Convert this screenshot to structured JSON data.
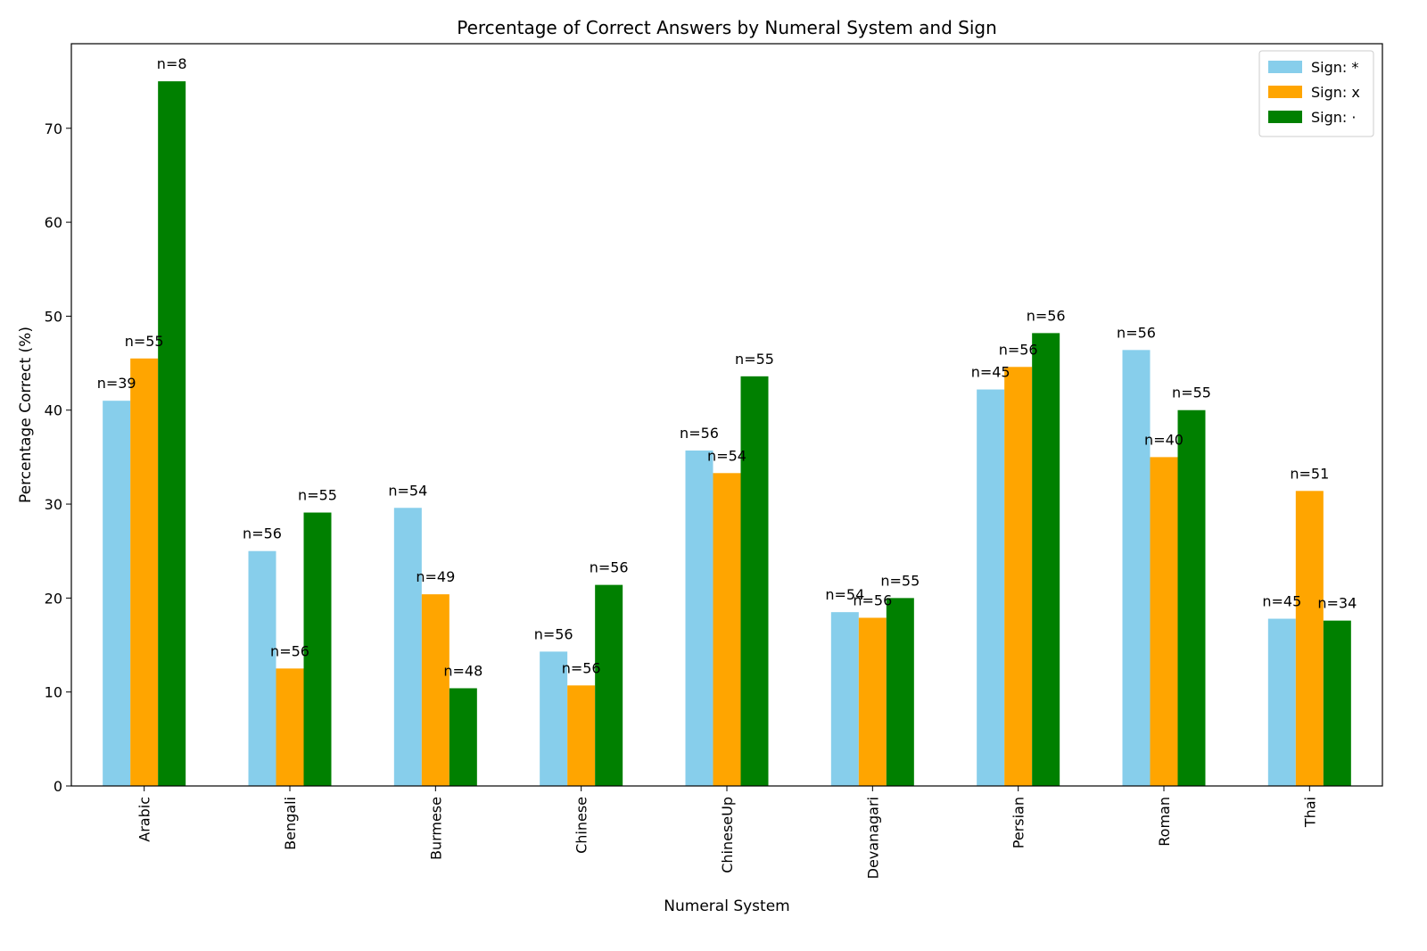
{
  "chart_data": {
    "type": "bar",
    "title": "Percentage of Correct Answers by Numeral System and Sign",
    "xlabel": "Numeral System",
    "ylabel": "Percentage Correct (%)",
    "ylim": [
      0,
      79
    ],
    "yticks": [
      0,
      10,
      20,
      30,
      40,
      50,
      60,
      70
    ],
    "grid": false,
    "legend_position": "top-right",
    "categories": [
      "Arabic",
      "Bengali",
      "Burmese",
      "Chinese",
      "ChineseUp",
      "Devanagari",
      "Persian",
      "Roman",
      "Thai"
    ],
    "series": [
      {
        "name": "Sign: *",
        "color": "#87ceeb",
        "values": [
          41.0,
          25.0,
          29.6,
          14.3,
          35.7,
          18.5,
          42.2,
          46.4,
          17.8
        ],
        "labels": [
          "n=39",
          "n=56",
          "n=54",
          "n=56",
          "n=56",
          "n=54",
          "n=45",
          "n=56",
          "n=45"
        ]
      },
      {
        "name": "Sign: x",
        "color": "#ffa500",
        "values": [
          45.5,
          12.5,
          20.4,
          10.7,
          33.3,
          17.9,
          44.6,
          35.0,
          31.4
        ],
        "labels": [
          "n=55",
          "n=56",
          "n=49",
          "n=56",
          "n=54",
          "n=56",
          "n=56",
          "n=40",
          "n=51"
        ]
      },
      {
        "name": "Sign: ·",
        "color": "#008000",
        "values": [
          75.0,
          29.1,
          10.4,
          21.4,
          43.6,
          20.0,
          48.2,
          40.0,
          17.6
        ],
        "labels": [
          "n=8",
          "n=55",
          "n=48",
          "n=56",
          "n=55",
          "n=55",
          "n=56",
          "n=55",
          "n=34"
        ]
      }
    ]
  }
}
